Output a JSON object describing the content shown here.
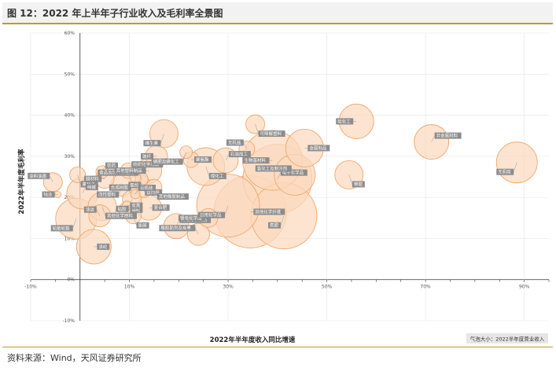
{
  "title": "图 12：2022 年上半年子行业收入及毛利率全景图",
  "source": "资料来源：Wind，天风证券研究所",
  "chart_data": {
    "type": "scatter",
    "subtype": "bubble",
    "xlabel": "2022年半年度收入同比增速",
    "ylabel": "2022年半年度毛利率",
    "size_legend": "气泡大小：2022半年度营业收入",
    "xlim": [
      -0.1,
      0.95
    ],
    "ylim": [
      -0.1,
      0.6
    ],
    "xticks": [
      "-10%",
      "10%",
      "30%",
      "50%",
      "70%",
      "90%"
    ],
    "yticks": [
      "-10%",
      "0%",
      "10%",
      "20%",
      "30%",
      "40%",
      "50%",
      "60%"
    ],
    "xtick_values": [
      -0.1,
      0.1,
      0.3,
      0.5,
      0.7,
      0.9
    ],
    "ytick_values": [
      -0.1,
      0.0,
      0.1,
      0.2,
      0.3,
      0.4,
      0.5,
      0.6
    ],
    "grid": true,
    "colors": {
      "bubble_fill": "#fbd9bd",
      "bubble_stroke": "#f0a060",
      "label_bg": "#8c8c8c",
      "accent": "#c8962c"
    },
    "points": [
      {
        "label": "涂料油墨",
        "x": -0.055,
        "y": 0.237,
        "size": 12
      },
      {
        "label": "氟化工",
        "x": -0.005,
        "y": 0.255,
        "size": 10
      },
      {
        "label": "钴业",
        "x": -0.045,
        "y": 0.207,
        "size": 4
      },
      {
        "label": "纯碱",
        "x": 0.005,
        "y": 0.21,
        "size": 20
      },
      {
        "label": "轮胎轮毂",
        "x": -0.008,
        "y": 0.148,
        "size": 26
      },
      {
        "label": "涤纶",
        "x": 0.028,
        "y": 0.08,
        "size": 22
      },
      {
        "label": "油运",
        "x": 0.04,
        "y": 0.155,
        "size": 14
      },
      {
        "label": "其他化学原料",
        "x": 0.045,
        "y": 0.178,
        "size": 18
      },
      {
        "label": "膜材料",
        "x": 0.05,
        "y": 0.245,
        "size": 12
      },
      {
        "label": "农药",
        "x": 0.045,
        "y": 0.262,
        "size": 8
      },
      {
        "label": "改性塑料",
        "x": 0.085,
        "y": 0.23,
        "size": 14
      },
      {
        "label": "锦纶",
        "x": 0.095,
        "y": 0.17,
        "size": 10
      },
      {
        "label": "民爆",
        "x": 0.112,
        "y": 0.248,
        "size": 7
      },
      {
        "label": "钛白粉",
        "x": 0.125,
        "y": 0.235,
        "size": 10
      },
      {
        "label": "合成树脂",
        "x": 0.11,
        "y": 0.224,
        "size": 8
      },
      {
        "label": "有机硅",
        "x": 0.112,
        "y": 0.208,
        "size": 6
      },
      {
        "label": "粘胶",
        "x": 0.105,
        "y": 0.195,
        "size": 12
      },
      {
        "label": "炭黑",
        "x": 0.095,
        "y": 0.18,
        "size": 6
      },
      {
        "label": "食品及饲料添加剂",
        "x": 0.125,
        "y": 0.245,
        "size": 8
      },
      {
        "label": "氯碱",
        "x": 0.108,
        "y": 0.155,
        "size": 10
      },
      {
        "label": "其他塑料制品",
        "x": 0.14,
        "y": 0.265,
        "size": 16
      },
      {
        "label": "纺织化学用品",
        "x": 0.098,
        "y": 0.265,
        "size": 10
      },
      {
        "label": "维生素",
        "x": 0.17,
        "y": 0.355,
        "size": 18
      },
      {
        "label": "复合肥",
        "x": 0.14,
        "y": 0.175,
        "size": 16
      },
      {
        "label": "氨纶",
        "x": 0.13,
        "y": 0.215,
        "size": 8
      },
      {
        "label": "其他橡胶制品",
        "x": 0.15,
        "y": 0.225,
        "size": 10
      },
      {
        "label": "玻纤",
        "x": 0.155,
        "y": 0.3,
        "size": 14
      },
      {
        "label": "其他化学制品",
        "x": 0.195,
        "y": 0.13,
        "size": 16
      },
      {
        "label": "磷肥及磷化工",
        "x": 0.215,
        "y": 0.31,
        "size": 8
      },
      {
        "label": "聚氨酯",
        "x": 0.225,
        "y": 0.292,
        "size": 10
      },
      {
        "label": "橡胶助剂及炭黑",
        "x": 0.24,
        "y": 0.11,
        "size": 14
      },
      {
        "label": "煤化工",
        "x": 0.255,
        "y": 0.275,
        "size": 24
      },
      {
        "label": "锂电化学品",
        "x": 0.26,
        "y": 0.15,
        "size": 12
      },
      {
        "label": "石油加工",
        "x": 0.295,
        "y": 0.29,
        "size": 16
      },
      {
        "label": "日用化学品",
        "x": 0.3,
        "y": 0.18,
        "size": 40
      },
      {
        "label": "其他化学纤维",
        "x": 0.345,
        "y": 0.165,
        "size": 46
      },
      {
        "label": "无机盐",
        "x": 0.338,
        "y": 0.318,
        "size": 10
      },
      {
        "label": "可降解塑料",
        "x": 0.355,
        "y": 0.378,
        "size": 12
      },
      {
        "label": "生物基材料",
        "x": 0.39,
        "y": 0.29,
        "size": 38
      },
      {
        "label": "电子化学品",
        "x": 0.4,
        "y": 0.245,
        "size": 44
      },
      {
        "label": "氮肥",
        "x": 0.413,
        "y": 0.155,
        "size": 42
      },
      {
        "label": "金属制品",
        "x": 0.455,
        "y": 0.32,
        "size": 24
      },
      {
        "label": "氯化工及制冷剂",
        "x": 0.435,
        "y": 0.255,
        "size": 26
      },
      {
        "label": "钾肥",
        "x": 0.545,
        "y": 0.255,
        "size": 18
      },
      {
        "label": "硅化工",
        "x": 0.56,
        "y": 0.385,
        "size": 22
      },
      {
        "label": "非金属材料",
        "x": 0.712,
        "y": 0.335,
        "size": 22
      },
      {
        "label": "无机硅",
        "x": 0.885,
        "y": 0.285,
        "size": 26
      }
    ]
  }
}
